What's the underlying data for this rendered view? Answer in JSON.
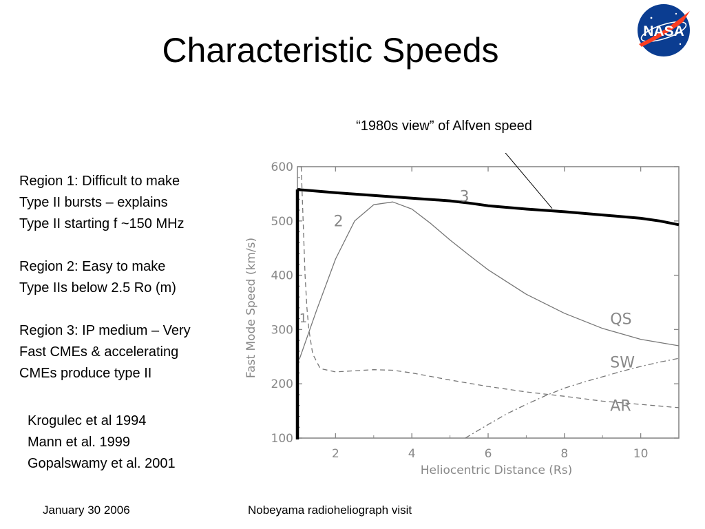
{
  "slide": {
    "title": "Characteristic Speeds",
    "annotation": "“1980s view” of Alfven speed",
    "regions": [
      [
        "Region 1: Difficult to make",
        "Type II bursts – explains",
        "Type II starting f ~150 MHz"
      ],
      [
        "Region 2: Easy to make",
        "Type IIs below 2.5 Ro (m)"
      ],
      [
        "Region 3: IP medium – Very",
        "Fast CMEs & accelerating",
        "CMEs produce type II"
      ]
    ],
    "references": [
      "Krogulec et al 1994",
      "Mann et al. 1999",
      "Gopalswamy et al. 2001"
    ],
    "footer_date": "January 30 2006",
    "footer_event": "Nobeyama radioheliograph visit",
    "logo_text": "NASA"
  },
  "chart_data": {
    "type": "line",
    "xlabel": "Heliocentric Distance (Rs)",
    "ylabel": "Fast Mode Speed (km/s)",
    "xlim": [
      1,
      11
    ],
    "ylim": [
      100,
      600
    ],
    "xticks": [
      2,
      4,
      6,
      8,
      10
    ],
    "yticks": [
      100,
      200,
      300,
      400,
      500,
      600
    ],
    "grid": false,
    "series": [
      {
        "name": "QS",
        "style": "solid-thin",
        "x": [
          1.05,
          1.5,
          2.0,
          2.5,
          3.0,
          3.5,
          4.0,
          4.5,
          5.0,
          5.5,
          6.0,
          7.0,
          8.0,
          9.0,
          10.0,
          11.0
        ],
        "y": [
          245,
          335,
          430,
          500,
          530,
          535,
          522,
          495,
          465,
          437,
          410,
          365,
          330,
          302,
          282,
          270
        ]
      },
      {
        "name": "AR",
        "style": "dashed",
        "x": [
          1.1,
          1.15,
          1.2,
          1.25,
          1.3,
          1.4,
          1.6,
          2.0,
          2.5,
          3.0,
          3.5,
          4.0,
          5.0,
          6.0,
          7.0,
          8.0,
          9.0,
          10.0,
          11.0
        ],
        "y": [
          600,
          500,
          400,
          340,
          300,
          255,
          228,
          222,
          224,
          226,
          225,
          220,
          207,
          195,
          185,
          177,
          168,
          162,
          156
        ]
      },
      {
        "name": "SW",
        "style": "dash-dot",
        "x": [
          5.4,
          6.0,
          6.5,
          7.0,
          7.5,
          8.0,
          8.5,
          9.0,
          9.5,
          10.0,
          10.5,
          11.0
        ],
        "y": [
          100,
          125,
          145,
          162,
          178,
          192,
          203,
          213,
          223,
          232,
          240,
          247
        ]
      },
      {
        "name": "Alfven speed (1980s view)",
        "style": "solid-thick",
        "x": [
          1.0,
          2.0,
          3.0,
          4.0,
          5.0,
          5.5,
          6.0,
          7.0,
          8.0,
          9.0,
          10.0,
          10.5,
          11.0
        ],
        "y": [
          558,
          552,
          547,
          542,
          537,
          533,
          528,
          522,
          517,
          511,
          505,
          500,
          493
        ]
      }
    ],
    "series_labels": [
      "QS",
      "SW",
      "AR"
    ],
    "region_labels": [
      "1",
      "2",
      "3"
    ]
  },
  "colors": {
    "curve": "#777777",
    "alfven_curve": "#000000",
    "axis": "#888888",
    "logo_blue": "#0b3d91",
    "logo_red": "#fc3d21"
  }
}
